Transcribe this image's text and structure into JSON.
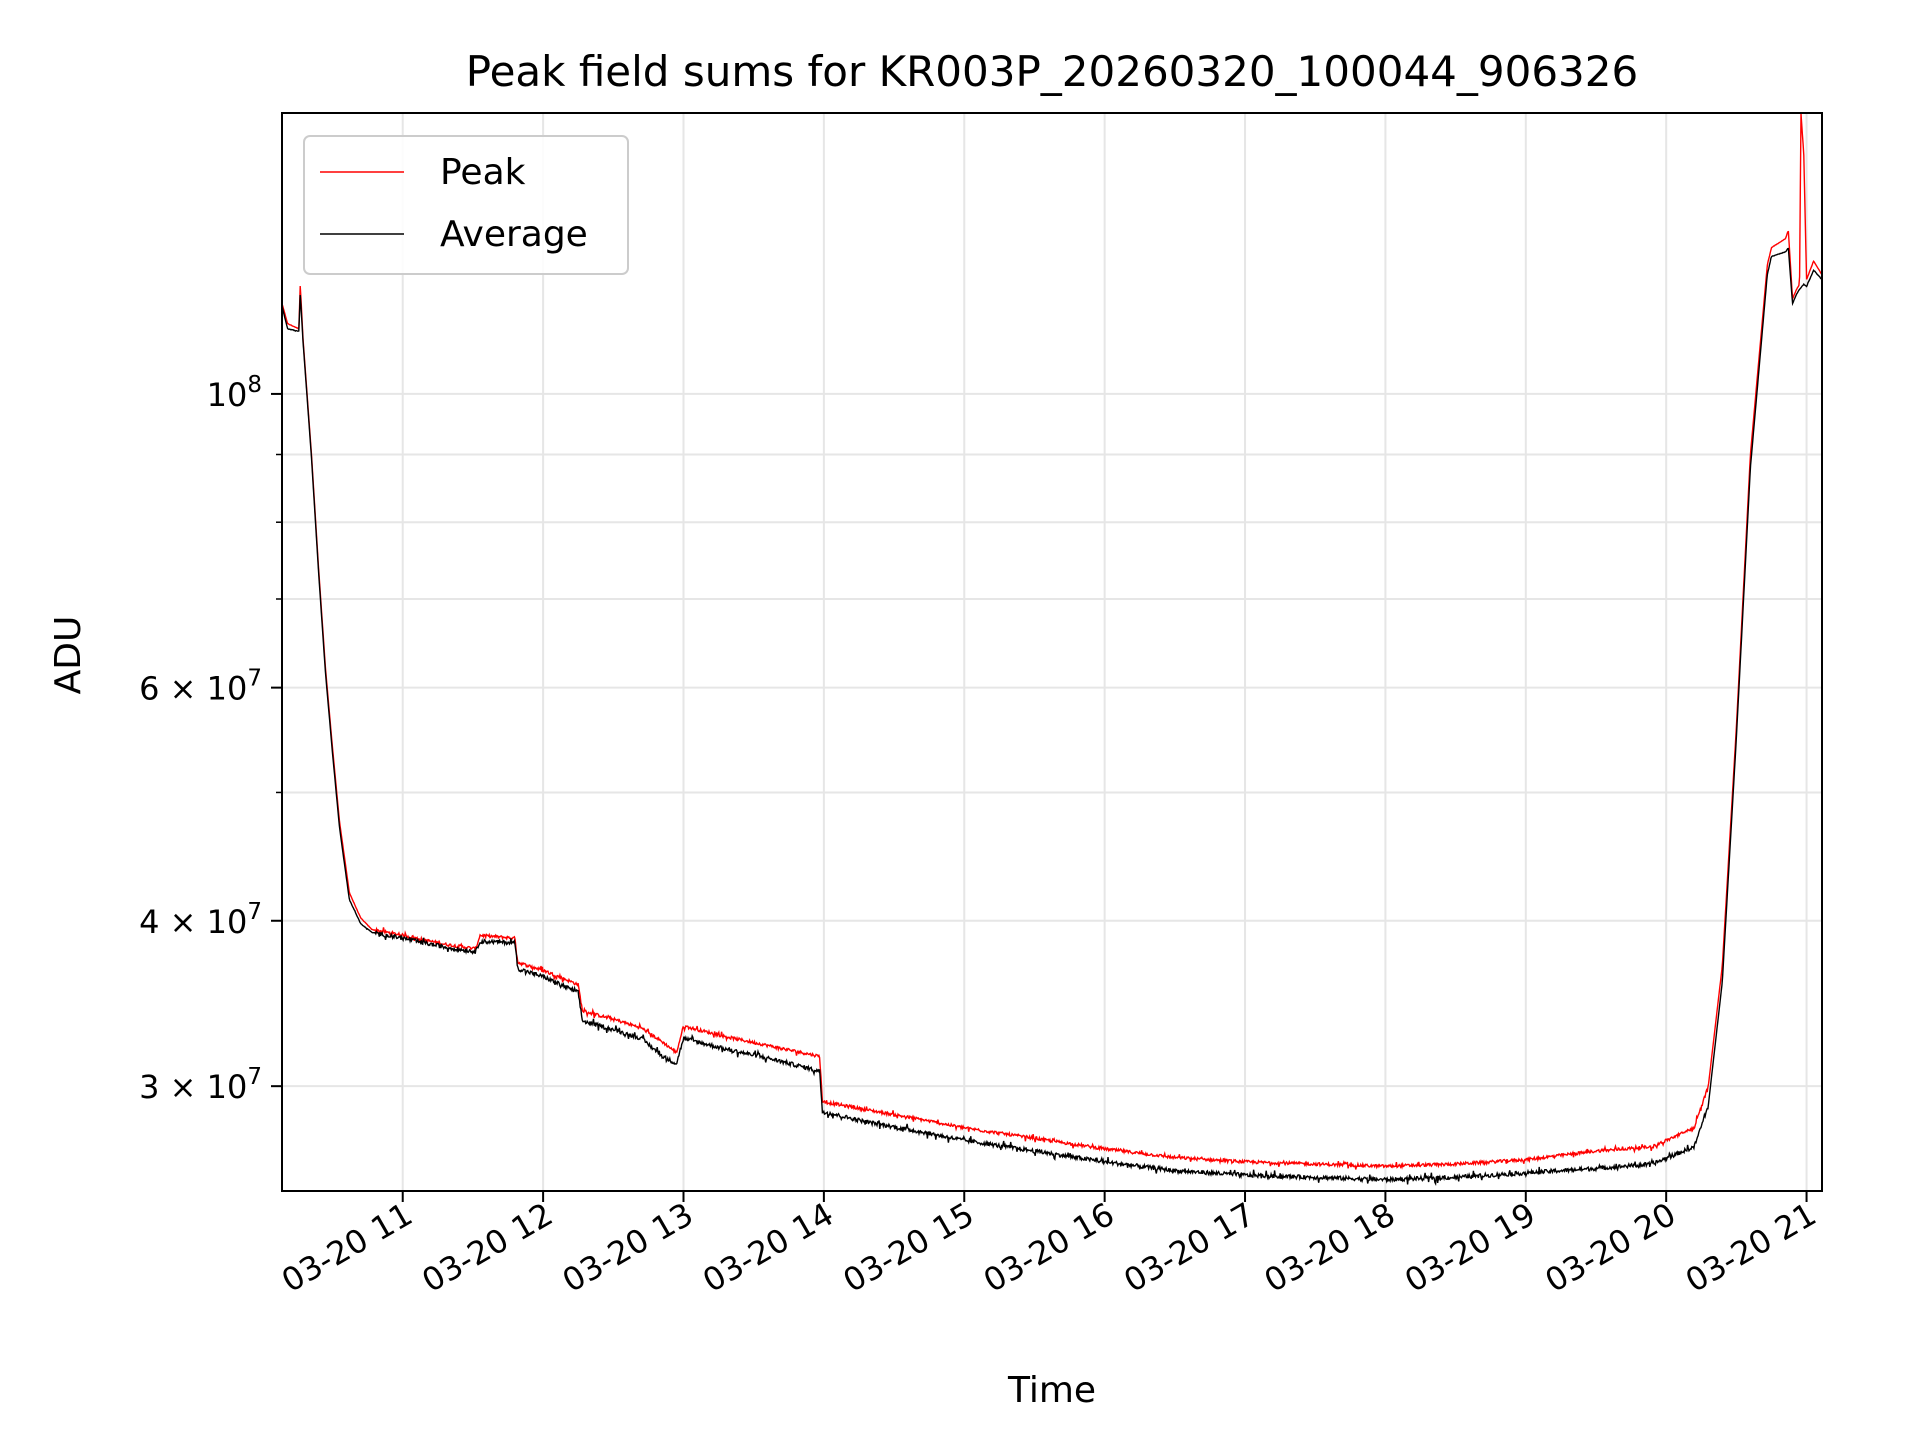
{
  "chart_data": {
    "type": "line",
    "title": "Peak field sums for KR003P_20260320_100044_906326",
    "xlabel": "Time",
    "ylabel": "ADU",
    "yscale": "log",
    "xlim": [
      10.14,
      21.11
    ],
    "ylim": [
      25000000,
      163000000
    ],
    "grid": true,
    "legend_position": "upper-left",
    "x_ticks": [
      {
        "value": 11,
        "label": "03-20 11"
      },
      {
        "value": 12,
        "label": "03-20 12"
      },
      {
        "value": 13,
        "label": "03-20 13"
      },
      {
        "value": 14,
        "label": "03-20 14"
      },
      {
        "value": 15,
        "label": "03-20 15"
      },
      {
        "value": 16,
        "label": "03-20 16"
      },
      {
        "value": 17,
        "label": "03-20 17"
      },
      {
        "value": 18,
        "label": "03-20 18"
      },
      {
        "value": 19,
        "label": "03-20 19"
      },
      {
        "value": 20,
        "label": "03-20 20"
      },
      {
        "value": 21,
        "label": "03-20 21"
      }
    ],
    "y_major_ticks": [
      {
        "value": 100000000,
        "mantissa": "",
        "exponent": "8"
      },
      {
        "value": 60000000,
        "mantissa": "6",
        "exponent": "7"
      },
      {
        "value": 40000000,
        "mantissa": "4",
        "exponent": "7"
      },
      {
        "value": 30000000,
        "mantissa": "3",
        "exponent": "7"
      }
    ],
    "y_minor_ticks": [
      50000000,
      70000000,
      80000000,
      90000000
    ],
    "series": [
      {
        "name": "Peak",
        "color": "#ff0000",
        "noise": 0.015,
        "points": [
          [
            10.14,
            117000000
          ],
          [
            10.18,
            113000000
          ],
          [
            10.26,
            112000000
          ],
          [
            10.27,
            121000000
          ],
          [
            10.29,
            110000000
          ],
          [
            10.35,
            90000000
          ],
          [
            10.4,
            74000000
          ],
          [
            10.45,
            62000000
          ],
          [
            10.5,
            54000000
          ],
          [
            10.55,
            47500000
          ],
          [
            10.62,
            42000000
          ],
          [
            10.7,
            40200000
          ],
          [
            10.78,
            39400000
          ],
          [
            11.0,
            39000000
          ],
          [
            11.3,
            38400000
          ],
          [
            11.52,
            38100000
          ],
          [
            11.55,
            39000000
          ],
          [
            11.8,
            38800000
          ],
          [
            11.82,
            37200000
          ],
          [
            12.0,
            36700000
          ],
          [
            12.25,
            35800000
          ],
          [
            12.28,
            34200000
          ],
          [
            12.5,
            33700000
          ],
          [
            12.7,
            33200000
          ],
          [
            12.85,
            32400000
          ],
          [
            12.95,
            31800000
          ],
          [
            13.0,
            33300000
          ],
          [
            13.3,
            32700000
          ],
          [
            13.6,
            32200000
          ],
          [
            13.97,
            31600000
          ],
          [
            13.99,
            29200000
          ],
          [
            14.3,
            28800000
          ],
          [
            14.7,
            28300000
          ],
          [
            15.0,
            27900000
          ],
          [
            15.5,
            27400000
          ],
          [
            16.0,
            26900000
          ],
          [
            16.5,
            26500000
          ],
          [
            17.0,
            26300000
          ],
          [
            17.5,
            26200000
          ],
          [
            18.0,
            26100000
          ],
          [
            18.5,
            26200000
          ],
          [
            19.0,
            26400000
          ],
          [
            19.5,
            26800000
          ],
          [
            19.9,
            27000000
          ],
          [
            20.2,
            27900000
          ],
          [
            20.3,
            30000000
          ],
          [
            20.4,
            37000000
          ],
          [
            20.5,
            56000000
          ],
          [
            20.6,
            90000000
          ],
          [
            20.72,
            125000000
          ],
          [
            20.75,
            129000000
          ],
          [
            20.85,
            131000000
          ],
          [
            20.87,
            133000000
          ],
          [
            20.9,
            118000000
          ],
          [
            20.93,
            120000000
          ],
          [
            20.95,
            121000000
          ],
          [
            20.96,
            163000000
          ],
          [
            20.98,
            152000000
          ],
          [
            21.0,
            122000000
          ],
          [
            21.05,
            126000000
          ],
          [
            21.11,
            123000000
          ]
        ]
      },
      {
        "name": "Average",
        "color": "#000000",
        "noise": 0.02,
        "points": [
          [
            10.14,
            116500000
          ],
          [
            10.18,
            112000000
          ],
          [
            10.26,
            111500000
          ],
          [
            10.27,
            119000000
          ],
          [
            10.29,
            109500000
          ],
          [
            10.35,
            89500000
          ],
          [
            10.4,
            73500000
          ],
          [
            10.45,
            61500000
          ],
          [
            10.5,
            53500000
          ],
          [
            10.55,
            47000000
          ],
          [
            10.62,
            41500000
          ],
          [
            10.7,
            39800000
          ],
          [
            10.78,
            39200000
          ],
          [
            11.0,
            38800000
          ],
          [
            11.3,
            38200000
          ],
          [
            11.52,
            37900000
          ],
          [
            11.55,
            38600000
          ],
          [
            11.8,
            38500000
          ],
          [
            11.82,
            36800000
          ],
          [
            12.0,
            36300000
          ],
          [
            12.25,
            35300000
          ],
          [
            12.28,
            33600000
          ],
          [
            12.5,
            33100000
          ],
          [
            12.7,
            32600000
          ],
          [
            12.85,
            31600000
          ],
          [
            12.95,
            31200000
          ],
          [
            13.0,
            32600000
          ],
          [
            13.3,
            32000000
          ],
          [
            13.6,
            31500000
          ],
          [
            13.97,
            30800000
          ],
          [
            13.99,
            28700000
          ],
          [
            14.3,
            28200000
          ],
          [
            14.7,
            27700000
          ],
          [
            15.0,
            27300000
          ],
          [
            15.5,
            26800000
          ],
          [
            16.0,
            26300000
          ],
          [
            16.5,
            25900000
          ],
          [
            17.0,
            25700000
          ],
          [
            17.5,
            25600000
          ],
          [
            18.0,
            25500000
          ],
          [
            18.5,
            25600000
          ],
          [
            19.0,
            25800000
          ],
          [
            19.5,
            26000000
          ],
          [
            19.9,
            26200000
          ],
          [
            20.2,
            27000000
          ],
          [
            20.3,
            29000000
          ],
          [
            20.4,
            36000000
          ],
          [
            20.5,
            55000000
          ],
          [
            20.6,
            88000000
          ],
          [
            20.72,
            123000000
          ],
          [
            20.75,
            127000000
          ],
          [
            20.85,
            128000000
          ],
          [
            20.87,
            129000000
          ],
          [
            20.9,
            117000000
          ],
          [
            20.93,
            119000000
          ],
          [
            20.95,
            120000000
          ],
          [
            20.98,
            121000000
          ],
          [
            21.0,
            120500000
          ],
          [
            21.05,
            124000000
          ],
          [
            21.11,
            122000000
          ]
        ]
      }
    ]
  }
}
